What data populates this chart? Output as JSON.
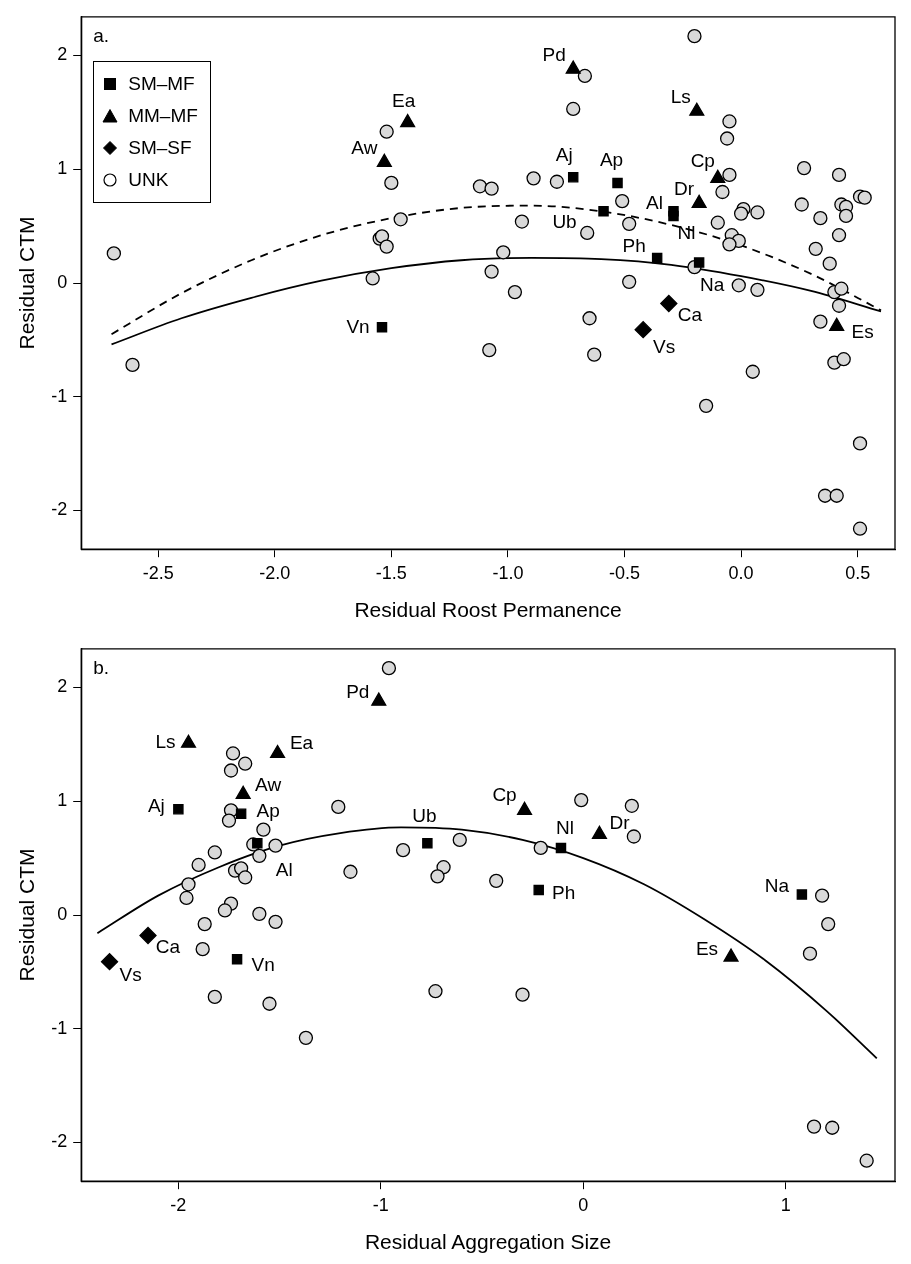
{
  "chart_data": [
    {
      "type": "scatter",
      "xlabel": "Residual Roost Permanence",
      "ylabel": "Residual CTM",
      "xlim": [
        -2.83,
        0.66
      ],
      "ylim": [
        -2.34,
        2.34
      ],
      "xticks": [
        {
          "value": -2.5,
          "label": "-2.5"
        },
        {
          "value": -2,
          "label": "-2.0"
        },
        {
          "value": -1.5,
          "label": "-1.5"
        },
        {
          "value": -1,
          "label": "-1.0"
        },
        {
          "value": -0.5,
          "label": "-0.5"
        },
        {
          "value": 0,
          "label": "0.0"
        },
        {
          "value": 0.5,
          "label": "0.5"
        }
      ],
      "yticks": [
        -2,
        -1,
        0,
        1,
        2
      ],
      "legend": "top left",
      "series": [
        {
          "name": "SM–MF",
          "color": "#000000",
          "marker": "square",
          "x": [
            -1.54,
            -0.72,
            -0.53,
            -0.59,
            -0.29,
            -0.29,
            -0.36,
            -0.18
          ],
          "values": [
            -0.39,
            0.93,
            0.88,
            0.63,
            0.63,
            0.59,
            0.22,
            0.18
          ]
        },
        {
          "name": "MM–MF",
          "color": "#000000",
          "marker": "triangle",
          "x": [
            -1.43,
            -1.53,
            -0.72,
            -0.19,
            -0.1,
            -0.18,
            0.41
          ],
          "values": [
            1.41,
            1.06,
            1.88,
            1.51,
            0.92,
            0.7,
            -0.38
          ]
        },
        {
          "name": "SM–SF",
          "color": "#000000",
          "marker": "diamond",
          "x": [
            -0.31,
            -0.42
          ],
          "values": [
            -0.18,
            -0.41
          ]
        },
        {
          "name": "UNK",
          "color": "#d9d9d9",
          "marker": "circle",
          "x": [
            -2.69,
            -2.61,
            -1.52,
            -1.5,
            -1.12,
            -1.46,
            -1.55,
            -1.54,
            -1.52,
            -1.58,
            -1.07,
            -1.07,
            -1.08,
            -0.2,
            -0.67,
            -0.72,
            -0.05,
            -0.06,
            -0.89,
            -0.79,
            -0.05,
            -0.08,
            0.27,
            0.42,
            0.51,
            0.53,
            0.26,
            0.43,
            0.45,
            0.34,
            0.45,
            0.42,
            0.32,
            0.38,
            0.4,
            0.43,
            0.42,
            0.34,
            0.4,
            0.44,
            0.51,
            0.36,
            0.41,
            0.51,
            -0.51,
            -0.94,
            -0.48,
            -0.66,
            -0.1,
            0.01,
            0,
            0.07,
            -0.04,
            -0.01,
            -0.05,
            -0.2,
            -1.02,
            -0.97,
            -0.48,
            -0.01,
            0.07,
            -0.65,
            -0.63,
            0.05,
            -0.15
          ],
          "values": [
            0.26,
            -0.72,
            1.33,
            0.88,
            0.85,
            0.56,
            0.39,
            0.41,
            0.32,
            0.04,
            0.83,
            0.1,
            -0.59,
            2.17,
            1.82,
            1.53,
            1.42,
            1.27,
            0.92,
            0.89,
            0.95,
            0.8,
            1.01,
            0.95,
            0.76,
            0.75,
            0.69,
            0.69,
            0.67,
            0.57,
            0.59,
            0.42,
            0.3,
            0.17,
            -0.08,
            -0.05,
            -0.2,
            -0.34,
            -0.7,
            -0.67,
            -1.41,
            -1.87,
            -1.87,
            -2.16,
            0.72,
            0.54,
            0.52,
            0.44,
            0.53,
            0.65,
            0.61,
            0.62,
            0.42,
            0.37,
            0.34,
            0.14,
            0.27,
            -0.08,
            0.01,
            -0.02,
            -0.06,
            -0.31,
            -0.63,
            -0.78,
            -1.08
          ]
        },
        {
          "type": "line",
          "color": "#000000",
          "line_style": "dashed",
          "marker": "none",
          "x": [
            -2.7,
            -2.4,
            -2.1,
            -1.8,
            -1.5,
            -1.2,
            -0.9,
            -0.6,
            -0.3,
            0,
            0.3,
            0.6
          ],
          "values": [
            -0.45,
            -0.09,
            0.2,
            0.42,
            0.57,
            0.66,
            0.68,
            0.63,
            0.51,
            0.33,
            0.08,
            -0.24
          ]
        },
        {
          "type": "line",
          "color": "#000000",
          "line_style": "solid",
          "marker": "none",
          "x": [
            -2.7,
            -2.4,
            -2.1,
            -1.8,
            -1.5,
            -1.2,
            -0.9,
            -0.6,
            -0.3,
            0,
            0.3,
            0.6
          ],
          "values": [
            -0.54,
            -0.31,
            -0.13,
            0.02,
            0.13,
            0.2,
            0.22,
            0.21,
            0.16,
            0.06,
            -0.07,
            -0.25
          ]
        }
      ],
      "annotations": [
        "a.",
        {
          "text": "Vn",
          "x": -1.54,
          "y": -0.39
        },
        {
          "text": "Aw",
          "x": -1.53,
          "y": 1.06
        },
        {
          "text": "Ea",
          "x": -1.43,
          "y": 1.41
        },
        {
          "text": "Pd",
          "x": -0.72,
          "y": 1.88
        },
        {
          "text": "Aj",
          "x": -0.72,
          "y": 0.93
        },
        {
          "text": "Ap",
          "x": -0.53,
          "y": 0.88
        },
        {
          "text": "Ls",
          "x": -0.19,
          "y": 1.51
        },
        {
          "text": "Cp",
          "x": -0.1,
          "y": 0.92
        },
        {
          "text": "Dr",
          "x": -0.18,
          "y": 0.7
        },
        {
          "text": "Ub",
          "x": -0.59,
          "y": 0.63
        },
        {
          "text": "Al",
          "x": -0.29,
          "y": 0.63
        },
        {
          "text": "Nl",
          "x": -0.29,
          "y": 0.59
        },
        {
          "text": "Ph",
          "x": -0.36,
          "y": 0.22
        },
        {
          "text": "Na",
          "x": -0.18,
          "y": 0.18
        },
        {
          "text": "Ca",
          "x": -0.31,
          "y": -0.18
        },
        {
          "text": "Vs",
          "x": -0.42,
          "y": -0.41
        },
        {
          "text": "Es",
          "x": 0.41,
          "y": -0.38
        }
      ]
    },
    {
      "type": "scatter",
      "xlabel": "Residual Aggregation Size",
      "ylabel": "Residual CTM",
      "xlim": [
        -2.48,
        1.54
      ],
      "ylim": [
        -2.34,
        2.34
      ],
      "xticks": [
        -2,
        -1,
        0,
        1
      ],
      "yticks": [
        -2,
        -1,
        0,
        1,
        2
      ],
      "series": [
        {
          "color": "#000000",
          "marker": "square",
          "x": [
            -2,
            -1.69,
            -1.61,
            -1.71,
            -0.77,
            -0.11,
            -0.22,
            1.08
          ],
          "values": [
            0.93,
            0.89,
            0.63,
            -0.39,
            0.63,
            0.59,
            0.22,
            0.18
          ]
        },
        {
          "color": "#000000",
          "marker": "triangle",
          "x": [
            -1.01,
            -1.95,
            -1.51,
            -1.68,
            -0.29,
            0.08,
            0.73
          ],
          "values": [
            1.88,
            1.51,
            1.42,
            1.06,
            0.92,
            0.71,
            -0.37
          ]
        },
        {
          "color": "#000000",
          "marker": "diamond",
          "x": [
            -2.15,
            -2.34
          ],
          "values": [
            -0.18,
            -0.41
          ]
        },
        {
          "color": "#d9d9d9",
          "marker": "circle",
          "x": [
            -0.96,
            -1.73,
            -1.67,
            -1.74,
            -1.74,
            -1.75,
            -1.58,
            -1.21,
            -1.63,
            -1.52,
            -1.6,
            -1.82,
            -1.9,
            -1.72,
            -1.69,
            -1.67,
            -1.95,
            -1.96,
            -1.15,
            -1.74,
            -1.77,
            -1.6,
            -1.52,
            -1.87,
            -1.88,
            -1.82,
            -1.55,
            -1.37,
            -0.89,
            -0.61,
            -0.69,
            -0.72,
            -0.73,
            -0.01,
            0.24,
            0.25,
            -0.21,
            -0.43,
            -0.3,
            1.18,
            1.21,
            1.12,
            1.14,
            1.23,
            1.4
          ],
          "values": [
            2.17,
            1.42,
            1.33,
            1.27,
            0.92,
            0.83,
            0.75,
            0.95,
            0.62,
            0.61,
            0.52,
            0.55,
            0.44,
            0.39,
            0.41,
            0.33,
            0.27,
            0.15,
            0.38,
            0.1,
            0.04,
            0.01,
            -0.06,
            -0.08,
            -0.3,
            -0.72,
            -0.78,
            -1.08,
            0.57,
            0.66,
            0.42,
            0.34,
            -0.67,
            1.01,
            0.96,
            0.69,
            0.59,
            0.3,
            -0.7,
            0.17,
            -0.08,
            -0.34,
            -1.86,
            -1.87,
            -2.16
          ]
        },
        {
          "type": "line",
          "color": "#000000",
          "line_style": "solid",
          "marker": "none",
          "x": [
            -2.4,
            -2.1,
            -1.8,
            -1.5,
            -1.2,
            -0.9,
            -0.6,
            -0.3,
            0,
            0.3,
            0.6,
            0.9,
            1.2,
            1.45
          ],
          "values": [
            -0.16,
            0.17,
            0.42,
            0.61,
            0.72,
            0.77,
            0.75,
            0.66,
            0.5,
            0.27,
            -0.04,
            -0.4,
            -0.84,
            -1.26
          ]
        }
      ],
      "annotations": [
        "b.",
        {
          "text": "Pd",
          "x": -1.01,
          "y": 1.88
        },
        {
          "text": "Ls",
          "x": -1.95,
          "y": 1.51
        },
        {
          "text": "Ea",
          "x": -1.51,
          "y": 1.42
        },
        {
          "text": "Aw",
          "x": -1.68,
          "y": 1.06
        },
        {
          "text": "Aj",
          "x": -2,
          "y": 0.93
        },
        {
          "text": "Ap",
          "x": -1.69,
          "y": 0.89
        },
        {
          "text": "Al",
          "x": -1.61,
          "y": 0.63
        },
        {
          "text": "Ca",
          "x": -2.15,
          "y": -0.18
        },
        {
          "text": "Vs",
          "x": -2.34,
          "y": -0.41
        },
        {
          "text": "Vn",
          "x": -1.71,
          "y": -0.39
        },
        {
          "text": "Ub",
          "x": -0.77,
          "y": 0.63
        },
        {
          "text": "Cp",
          "x": -0.29,
          "y": 0.92
        },
        {
          "text": "Nl",
          "x": -0.11,
          "y": 0.59
        },
        {
          "text": "Dr",
          "x": 0.08,
          "y": 0.71
        },
        {
          "text": "Ph",
          "x": -0.22,
          "y": 0.22
        },
        {
          "text": "Na",
          "x": 1.08,
          "y": 0.18
        },
        {
          "text": "Es",
          "x": 0.73,
          "y": -0.37
        }
      ]
    }
  ]
}
